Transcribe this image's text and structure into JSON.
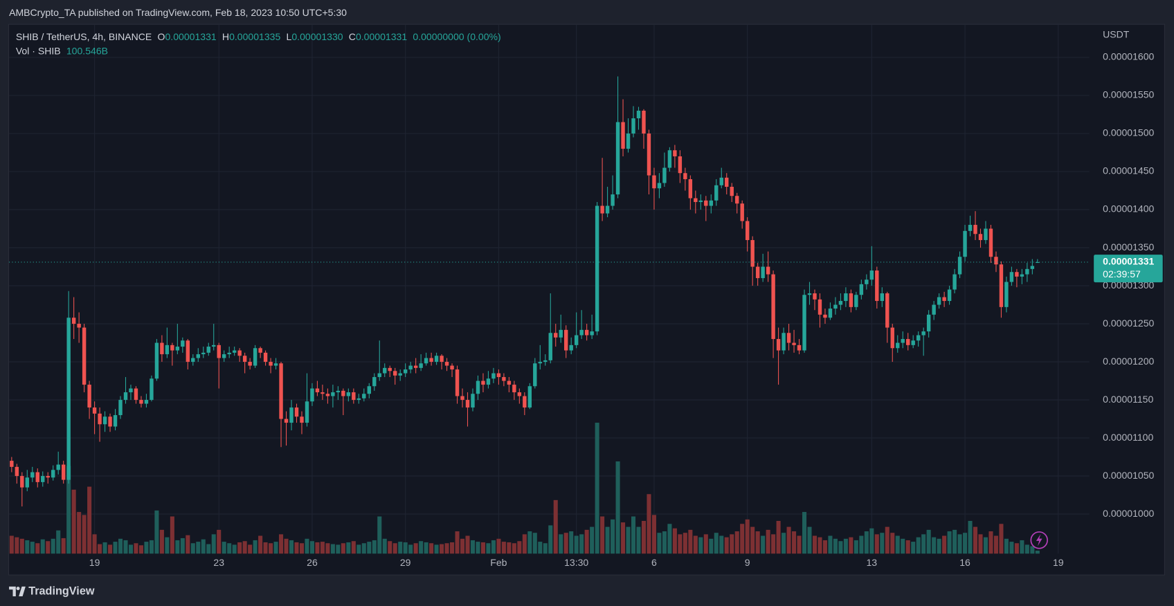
{
  "header": {
    "title": "AMBCrypto_TA published on TradingView.com, Feb 18, 2023 10:50 UTC+5:30"
  },
  "footer": {
    "brand": "TradingView"
  },
  "chart_data": {
    "type": "candlestick",
    "symbol": "SHIB / TetherUS, 4h, BINANCE",
    "ohlc_legend": [
      {
        "key": "O",
        "value": 1.331e-05,
        "label": "0.00001331"
      },
      {
        "key": "H",
        "value": 1.335e-05,
        "label": "0.00001335"
      },
      {
        "key": "L",
        "value": 1.33e-05,
        "label": "0.00001330"
      },
      {
        "key": "C",
        "value": 1.331e-05,
        "label": "0.00001331"
      }
    ],
    "change": {
      "value": 0,
      "label": "0.00000000"
    },
    "change_pct": {
      "value": 0,
      "label": "(0.00%)"
    },
    "volume_name": "Vol · SHIB",
    "volume_last": {
      "value": 100.546,
      "label": "100.546B"
    },
    "axis_unit": "USDT",
    "last_price": {
      "value": 1.331e-05,
      "label": "0.00001331"
    },
    "countdown": "02:39:57",
    "up_color": "#26a69a",
    "down_color": "#ef5350",
    "volume_up_color": "#1f5f5b",
    "volume_down_color": "#7d3033",
    "grid": true,
    "xlim": [
      -0.5,
      208
    ],
    "xticks": [
      {
        "value": 16,
        "label": "19"
      },
      {
        "value": 40,
        "label": "23"
      },
      {
        "value": 58,
        "label": "26"
      },
      {
        "value": 76,
        "label": "29"
      },
      {
        "value": 94,
        "label": "Feb"
      },
      {
        "value": 109,
        "label": "13:30"
      },
      {
        "value": 124,
        "label": "6"
      },
      {
        "value": 142,
        "label": "9"
      },
      {
        "value": 166,
        "label": "13"
      },
      {
        "value": 184,
        "label": "16"
      },
      {
        "value": 202,
        "label": "19"
      }
    ],
    "ylim": [
      9.48e-06,
      1.643e-05
    ],
    "yticks": [
      {
        "value": 1e-05,
        "label": "0.00001000"
      },
      {
        "value": 1.05e-05,
        "label": "0.00001050"
      },
      {
        "value": 1.1e-05,
        "label": "0.00001100"
      },
      {
        "value": 1.15e-05,
        "label": "0.00001150"
      },
      {
        "value": 1.2e-05,
        "label": "0.00001200"
      },
      {
        "value": 1.25e-05,
        "label": "0.00001250"
      },
      {
        "value": 1.3e-05,
        "label": "0.00001300"
      },
      {
        "value": 1.35e-05,
        "label": "0.00001350"
      },
      {
        "value": 1.4e-05,
        "label": "0.00001400"
      },
      {
        "value": 1.45e-05,
        "label": "0.00001450"
      },
      {
        "value": 1.5e-05,
        "label": "0.00001500"
      },
      {
        "value": 1.55e-05,
        "label": "0.00001550"
      },
      {
        "value": 1.6e-05,
        "label": "0.00001600"
      }
    ],
    "open": [
      1.07e-05,
      1.062e-05,
      1.05e-05,
      1.035e-05,
      1.048e-05,
      1.055e-05,
      1.042e-05,
      1.05e-05,
      1.048e-05,
      1.058e-05,
      1.065e-05,
      1.045e-05,
      1.258e-05,
      1.25e-05,
      1.245e-05,
      1.17e-05,
      1.14e-05,
      1.132e-05,
      1.118e-05,
      1.128e-05,
      1.115e-05,
      1.13e-05,
      1.15e-05,
      1.16e-05,
      1.165e-05,
      1.15e-05,
      1.145e-05,
      1.15e-05,
      1.178e-05,
      1.225e-05,
      1.21e-05,
      1.222e-05,
      1.215e-05,
      1.22e-05,
      1.228e-05,
      1.2e-05,
      1.205e-05,
      1.21e-05,
      1.212e-05,
      1.22e-05,
      1.222e-05,
      1.205e-05,
      1.21e-05,
      1.212e-05,
      1.215e-05,
      1.208e-05,
      1.2e-05,
      1.195e-05,
      1.218e-05,
      1.212e-05,
      1.2e-05,
      1.195e-05,
      1.198e-05,
      1.125e-05,
      1.12e-05,
      1.14e-05,
      1.128e-05,
      1.12e-05,
      1.148e-05,
      1.165e-05,
      1.16e-05,
      1.158e-05,
      1.155e-05,
      1.16e-05,
      1.162e-05,
      1.155e-05,
      1.16e-05,
      1.15e-05,
      1.152e-05,
      1.158e-05,
      1.168e-05,
      1.18e-05,
      1.185e-05,
      1.192e-05,
      1.188e-05,
      1.182e-05,
      1.185e-05,
      1.19e-05,
      1.195e-05,
      1.192e-05,
      1.198e-05,
      1.205e-05,
      1.2e-05,
      1.208e-05,
      1.2e-05,
      1.195e-05,
      1.19e-05,
      1.155e-05,
      1.15e-05,
      1.14e-05,
      1.158e-05,
      1.175e-05,
      1.17e-05,
      1.178e-05,
      1.185e-05,
      1.18e-05,
      1.175e-05,
      1.17e-05,
      1.16e-05,
      1.155e-05,
      1.14e-05,
      1.168e-05,
      1.198e-05,
      1.2e-05,
      1.202e-05,
      1.238e-05,
      1.232e-05,
      1.242e-05,
      1.215e-05,
      1.222e-05,
      1.235e-05,
      1.242e-05,
      1.235e-05,
      1.24e-05,
      1.405e-05,
      1.395e-05,
      1.405e-05,
      1.42e-05,
      1.515e-05,
      1.48e-05,
      1.5e-05,
      1.52e-05,
      1.53e-05,
      1.5e-05,
      1.445e-05,
      1.428e-05,
      1.435e-05,
      1.455e-05,
      1.478e-05,
      1.47e-05,
      1.448e-05,
      1.44e-05,
      1.415e-05,
      1.41e-05,
      1.412e-05,
      1.405e-05,
      1.412e-05,
      1.432e-05,
      1.442e-05,
      1.43e-05,
      1.418e-05,
      1.408e-05,
      1.385e-05,
      1.36e-05,
      1.325e-05,
      1.31e-05,
      1.325e-05,
      1.315e-05,
      1.23e-05,
      1.215e-05,
      1.238e-05,
      1.225e-05,
      1.222e-05,
      1.215e-05,
      1.288e-05,
      1.29e-05,
      1.282e-05,
      1.262e-05,
      1.258e-05,
      1.27e-05,
      1.275e-05,
      1.28e-05,
      1.29e-05,
      1.272e-05,
      1.288e-05,
      1.302e-05,
      1.308e-05,
      1.32e-05,
      1.28e-05,
      1.29e-05,
      1.245e-05,
      1.218e-05,
      1.225e-05,
      1.23e-05,
      1.222e-05,
      1.228e-05,
      1.235e-05,
      1.24e-05,
      1.262e-05,
      1.275e-05,
      1.285e-05,
      1.28e-05,
      1.295e-05,
      1.315e-05,
      1.338e-05,
      1.372e-05,
      1.38e-05,
      1.368e-05,
      1.36e-05,
      1.375e-05,
      1.338e-05,
      1.328e-05,
      1.272e-05,
      1.305e-05,
      1.318e-05,
      1.312e-05,
      1.315e-05,
      1.322e-05,
      1.331e-05
    ],
    "high": [
      1.075e-05,
      1.066e-05,
      1.055e-05,
      1.058e-05,
      1.062e-05,
      1.06e-05,
      1.056e-05,
      1.055e-05,
      1.064e-05,
      1.082e-05,
      1.07e-05,
      1.293e-05,
      1.285e-05,
      1.265e-05,
      1.25e-05,
      1.175e-05,
      1.148e-05,
      1.14e-05,
      1.135e-05,
      1.132e-05,
      1.138e-05,
      1.155e-05,
      1.18e-05,
      1.17e-05,
      1.168e-05,
      1.155e-05,
      1.158e-05,
      1.182e-05,
      1.23e-05,
      1.235e-05,
      1.245e-05,
      1.225e-05,
      1.25e-05,
      1.232e-05,
      1.23e-05,
      1.21e-05,
      1.218e-05,
      1.22e-05,
      1.225e-05,
      1.25e-05,
      1.225e-05,
      1.215e-05,
      1.22e-05,
      1.22e-05,
      1.218e-05,
      1.212e-05,
      1.205e-05,
      1.222e-05,
      1.22e-05,
      1.215e-05,
      1.205e-05,
      1.205e-05,
      1.2e-05,
      1.135e-05,
      1.15e-05,
      1.145e-05,
      1.135e-05,
      1.185e-05,
      1.172e-05,
      1.175e-05,
      1.17e-05,
      1.165e-05,
      1.17e-05,
      1.168e-05,
      1.165e-05,
      1.165e-05,
      1.165e-05,
      1.158e-05,
      1.165e-05,
      1.172e-05,
      1.185e-05,
      1.228e-05,
      1.198e-05,
      1.195e-05,
      1.192e-05,
      1.19e-05,
      1.198e-05,
      1.2e-05,
      1.205e-05,
      1.21e-05,
      1.212e-05,
      1.212e-05,
      1.212e-05,
      1.21e-05,
      1.205e-05,
      1.198e-05,
      1.195e-05,
      1.165e-05,
      1.16e-05,
      1.165e-05,
      1.182e-05,
      1.185e-05,
      1.188e-05,
      1.192e-05,
      1.19e-05,
      1.185e-05,
      1.18e-05,
      1.175e-05,
      1.165e-05,
      1.16e-05,
      1.172e-05,
      1.205e-05,
      1.222e-05,
      1.21e-05,
      1.29e-05,
      1.25e-05,
      1.262e-05,
      1.248e-05,
      1.232e-05,
      1.265e-05,
      1.268e-05,
      1.25e-05,
      1.262e-05,
      1.41e-05,
      1.468e-05,
      1.43e-05,
      1.445e-05,
      1.575e-05,
      1.545e-05,
      1.52e-05,
      1.536e-05,
      1.535e-05,
      1.532e-05,
      1.505e-05,
      1.455e-05,
      1.448e-05,
      1.475e-05,
      1.482e-05,
      1.485e-05,
      1.478e-05,
      1.455e-05,
      1.445e-05,
      1.425e-05,
      1.42e-05,
      1.418e-05,
      1.42e-05,
      1.44e-05,
      1.455e-05,
      1.448e-05,
      1.435e-05,
      1.422e-05,
      1.412e-05,
      1.39e-05,
      1.365e-05,
      1.33e-05,
      1.342e-05,
      1.345e-05,
      1.32e-05,
      1.245e-05,
      1.245e-05,
      1.25e-05,
      1.242e-05,
      1.23e-05,
      1.295e-05,
      1.305e-05,
      1.295e-05,
      1.29e-05,
      1.27e-05,
      1.278e-05,
      1.285e-05,
      1.29e-05,
      1.298e-05,
      1.295e-05,
      1.292e-05,
      1.308e-05,
      1.315e-05,
      1.352e-05,
      1.325e-05,
      1.298e-05,
      1.292e-05,
      1.25e-05,
      1.235e-05,
      1.24e-05,
      1.238e-05,
      1.235e-05,
      1.24e-05,
      1.245e-05,
      1.268e-05,
      1.28e-05,
      1.29e-05,
      1.292e-05,
      1.3e-05,
      1.322e-05,
      1.345e-05,
      1.38e-05,
      1.392e-05,
      1.398e-05,
      1.375e-05,
      1.385e-05,
      1.38e-05,
      1.345e-05,
      1.332e-05,
      1.312e-05,
      1.325e-05,
      1.322e-05,
      1.322e-05,
      1.33e-05,
      1.335e-05,
      1.335e-05
    ],
    "low": [
      1.055e-05,
      1.04e-05,
      1.01e-05,
      1.03e-05,
      1.042e-05,
      1.035e-05,
      1.036e-05,
      1.04e-05,
      1.044e-05,
      1.052e-05,
      1.04e-05,
      1.04e-05,
      1.23e-05,
      1.225e-05,
      1.16e-05,
      1.125e-05,
      1.105e-05,
      1.095e-05,
      1.108e-05,
      1.108e-05,
      1.11e-05,
      1.125e-05,
      1.145e-05,
      1.15e-05,
      1.145e-05,
      1.14e-05,
      1.14e-05,
      1.148e-05,
      1.175e-05,
      1.2e-05,
      1.205e-05,
      1.195e-05,
      1.21e-05,
      1.212e-05,
      1.19e-05,
      1.195e-05,
      1.2e-05,
      1.205e-05,
      1.208e-05,
      1.215e-05,
      1.165e-05,
      1.2e-05,
      1.205e-05,
      1.208e-05,
      1.2e-05,
      1.185e-05,
      1.19e-05,
      1.192e-05,
      1.205e-05,
      1.195e-05,
      1.185e-05,
      1.19e-05,
      1.088e-05,
      1.09e-05,
      1.11e-05,
      1.12e-05,
      1.105e-05,
      1.115e-05,
      1.142e-05,
      1.155e-05,
      1.15e-05,
      1.145e-05,
      1.14e-05,
      1.15e-05,
      1.13e-05,
      1.148e-05,
      1.145e-05,
      1.145e-05,
      1.148e-05,
      1.152e-05,
      1.162e-05,
      1.175e-05,
      1.18e-05,
      1.18e-05,
      1.17e-05,
      1.175e-05,
      1.18e-05,
      1.185e-05,
      1.185e-05,
      1.188e-05,
      1.195e-05,
      1.195e-05,
      1.196e-05,
      1.19e-05,
      1.188e-05,
      1.18e-05,
      1.145e-05,
      1.14e-05,
      1.115e-05,
      1.135e-05,
      1.15e-05,
      1.16e-05,
      1.165e-05,
      1.172e-05,
      1.17e-05,
      1.168e-05,
      1.16e-05,
      1.15e-05,
      1.145e-05,
      1.13e-05,
      1.138e-05,
      1.165e-05,
      1.19e-05,
      1.195e-05,
      1.198e-05,
      1.22e-05,
      1.225e-05,
      1.205e-05,
      1.21e-05,
      1.218e-05,
      1.23e-05,
      1.228e-05,
      1.23e-05,
      1.235e-05,
      1.385e-05,
      1.39e-05,
      1.4e-05,
      1.415e-05,
      1.47e-05,
      1.475e-05,
      1.495e-05,
      1.505e-05,
      1.48e-05,
      1.42e-05,
      1.4e-05,
      1.415e-05,
      1.43e-05,
      1.45e-05,
      1.455e-05,
      1.435e-05,
      1.425e-05,
      1.4e-05,
      1.395e-05,
      1.4e-05,
      1.385e-05,
      1.395e-05,
      1.405e-05,
      1.428e-05,
      1.42e-05,
      1.41e-05,
      1.395e-05,
      1.375e-05,
      1.345e-05,
      1.3e-05,
      1.3e-05,
      1.305e-05,
      1.305e-05,
      1.205e-05,
      1.17e-05,
      1.21e-05,
      1.215e-05,
      1.212e-05,
      1.21e-05,
      1.212e-05,
      1.275e-05,
      1.268e-05,
      1.245e-05,
      1.25e-05,
      1.255e-05,
      1.262e-05,
      1.268e-05,
      1.272e-05,
      1.265e-05,
      1.268e-05,
      1.282e-05,
      1.295e-05,
      1.3e-05,
      1.27e-05,
      1.272e-05,
      1.225e-05,
      1.2e-05,
      1.212e-05,
      1.218e-05,
      1.215e-05,
      1.218e-05,
      1.22e-05,
      1.208e-05,
      1.232e-05,
      1.255e-05,
      1.27e-05,
      1.272e-05,
      1.275e-05,
      1.29e-05,
      1.31e-05,
      1.332e-05,
      1.365e-05,
      1.36e-05,
      1.35e-05,
      1.355e-05,
      1.33e-05,
      1.318e-05,
      1.258e-05,
      1.265e-05,
      1.3e-05,
      1.298e-05,
      1.302e-05,
      1.305e-05,
      1.315e-05,
      1.33e-05
    ],
    "close": [
      1.062e-05,
      1.05e-05,
      1.035e-05,
      1.048e-05,
      1.055e-05,
      1.042e-05,
      1.05e-05,
      1.048e-05,
      1.058e-05,
      1.065e-05,
      1.045e-05,
      1.258e-05,
      1.25e-05,
      1.245e-05,
      1.17e-05,
      1.14e-05,
      1.132e-05,
      1.118e-05,
      1.128e-05,
      1.115e-05,
      1.13e-05,
      1.15e-05,
      1.16e-05,
      1.165e-05,
      1.15e-05,
      1.145e-05,
      1.15e-05,
      1.178e-05,
      1.225e-05,
      1.21e-05,
      1.222e-05,
      1.215e-05,
      1.22e-05,
      1.228e-05,
      1.2e-05,
      1.205e-05,
      1.21e-05,
      1.212e-05,
      1.22e-05,
      1.222e-05,
      1.205e-05,
      1.21e-05,
      1.212e-05,
      1.215e-05,
      1.208e-05,
      1.2e-05,
      1.195e-05,
      1.218e-05,
      1.212e-05,
      1.2e-05,
      1.195e-05,
      1.198e-05,
      1.125e-05,
      1.12e-05,
      1.14e-05,
      1.128e-05,
      1.12e-05,
      1.148e-05,
      1.165e-05,
      1.16e-05,
      1.158e-05,
      1.155e-05,
      1.16e-05,
      1.162e-05,
      1.155e-05,
      1.16e-05,
      1.15e-05,
      1.152e-05,
      1.158e-05,
      1.168e-05,
      1.18e-05,
      1.185e-05,
      1.192e-05,
      1.188e-05,
      1.182e-05,
      1.185e-05,
      1.19e-05,
      1.195e-05,
      1.192e-05,
      1.198e-05,
      1.205e-05,
      1.2e-05,
      1.208e-05,
      1.2e-05,
      1.195e-05,
      1.19e-05,
      1.155e-05,
      1.15e-05,
      1.14e-05,
      1.158e-05,
      1.175e-05,
      1.17e-05,
      1.178e-05,
      1.185e-05,
      1.18e-05,
      1.175e-05,
      1.17e-05,
      1.16e-05,
      1.155e-05,
      1.14e-05,
      1.168e-05,
      1.198e-05,
      1.2e-05,
      1.202e-05,
      1.238e-05,
      1.232e-05,
      1.242e-05,
      1.215e-05,
      1.222e-05,
      1.235e-05,
      1.242e-05,
      1.235e-05,
      1.24e-05,
      1.405e-05,
      1.395e-05,
      1.405e-05,
      1.42e-05,
      1.515e-05,
      1.48e-05,
      1.5e-05,
      1.52e-05,
      1.53e-05,
      1.5e-05,
      1.445e-05,
      1.428e-05,
      1.435e-05,
      1.455e-05,
      1.478e-05,
      1.47e-05,
      1.448e-05,
      1.44e-05,
      1.415e-05,
      1.41e-05,
      1.412e-05,
      1.405e-05,
      1.412e-05,
      1.432e-05,
      1.442e-05,
      1.43e-05,
      1.418e-05,
      1.408e-05,
      1.385e-05,
      1.36e-05,
      1.325e-05,
      1.31e-05,
      1.325e-05,
      1.315e-05,
      1.23e-05,
      1.215e-05,
      1.238e-05,
      1.225e-05,
      1.222e-05,
      1.215e-05,
      1.288e-05,
      1.29e-05,
      1.282e-05,
      1.262e-05,
      1.258e-05,
      1.27e-05,
      1.275e-05,
      1.28e-05,
      1.29e-05,
      1.272e-05,
      1.288e-05,
      1.302e-05,
      1.308e-05,
      1.32e-05,
      1.28e-05,
      1.29e-05,
      1.245e-05,
      1.218e-05,
      1.225e-05,
      1.23e-05,
      1.222e-05,
      1.228e-05,
      1.235e-05,
      1.24e-05,
      1.262e-05,
      1.275e-05,
      1.285e-05,
      1.28e-05,
      1.295e-05,
      1.315e-05,
      1.338e-05,
      1.372e-05,
      1.38e-05,
      1.368e-05,
      1.36e-05,
      1.375e-05,
      1.338e-05,
      1.328e-05,
      1.272e-05,
      1.305e-05,
      1.318e-05,
      1.312e-05,
      1.315e-05,
      1.322e-05,
      1.326e-05,
      1.331e-05
    ],
    "volume": [
      600,
      550,
      500,
      450,
      400,
      350,
      480,
      420,
      500,
      780,
      520,
      2950,
      2150,
      1400,
      1300,
      2250,
      650,
      320,
      380,
      300,
      400,
      500,
      450,
      300,
      350,
      280,
      400,
      450,
      1450,
      800,
      550,
      1250,
      450,
      520,
      620,
      350,
      400,
      480,
      320,
      650,
      800,
      400,
      350,
      300,
      380,
      420,
      300,
      450,
      600,
      380,
      350,
      400,
      650,
      500,
      450,
      380,
      350,
      500,
      420,
      380,
      400,
      350,
      320,
      300,
      350,
      380,
      420,
      300,
      350,
      400,
      450,
      1250,
      500,
      420,
      350,
      400,
      380,
      300,
      350,
      420,
      380,
      350,
      300,
      320,
      350,
      380,
      750,
      500,
      600,
      450,
      400,
      380,
      350,
      450,
      500,
      400,
      380,
      350,
      420,
      650,
      750,
      700,
      400,
      350,
      950,
      1800,
      650,
      700,
      750,
      600,
      650,
      800,
      900,
      4400,
      1250,
      900,
      1150,
      3100,
      1050,
      900,
      1250,
      900,
      1100,
      2000,
      1300,
      700,
      750,
      1000,
      850,
      650,
      700,
      800,
      600,
      550,
      650,
      500,
      700,
      600,
      550,
      650,
      750,
      1000,
      1150,
      900,
      750,
      600,
      800,
      650,
      1100,
      700,
      900,
      750,
      600,
      1400,
      900,
      600,
      550,
      450,
      600,
      500,
      420,
      500,
      550,
      450,
      600,
      750,
      850,
      650,
      700,
      900,
      700,
      600,
      500,
      450,
      400,
      550,
      650,
      800,
      550,
      500,
      600,
      750,
      800,
      650,
      700,
      1100,
      900,
      650,
      550,
      750,
      600,
      1000,
      500,
      400,
      350,
      450,
      300,
      250,
      100.546
    ]
  }
}
